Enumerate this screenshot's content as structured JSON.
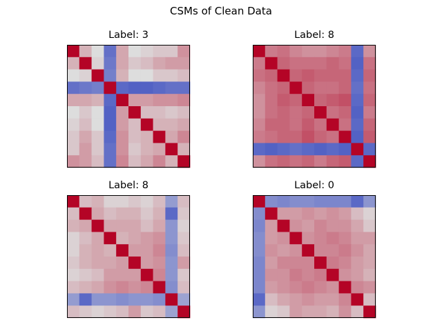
{
  "figure": {
    "title": "CSMs of Clean Data"
  },
  "chart_data": [
    {
      "type": "heatmap",
      "title": "Label: 3",
      "color_scale": {
        "low": "#3b4cc0",
        "mid": "#dddddd",
        "high": "#b40426",
        "vmin": -1,
        "vmax": 1
      },
      "matrix": [
        [
          1.0,
          0.2,
          0.0,
          -0.75,
          0.25,
          0.0,
          0.05,
          0.1,
          0.1,
          0.35
        ],
        [
          0.2,
          1.0,
          0.05,
          -0.7,
          0.25,
          0.1,
          0.15,
          0.25,
          0.3,
          0.3
        ],
        [
          0.0,
          0.05,
          1.0,
          -0.65,
          0.2,
          0.0,
          0.0,
          0.1,
          0.1,
          0.15
        ],
        [
          -0.75,
          -0.7,
          -0.65,
          1.0,
          -0.8,
          -0.85,
          -0.85,
          -0.8,
          -0.75,
          -0.75
        ],
        [
          0.25,
          0.25,
          0.2,
          -0.8,
          1.0,
          0.3,
          0.3,
          0.35,
          0.35,
          0.4
        ],
        [
          0.0,
          0.1,
          0.0,
          -0.85,
          0.3,
          1.0,
          0.15,
          0.15,
          0.1,
          0.15
        ],
        [
          0.05,
          0.15,
          0.0,
          -0.85,
          0.3,
          0.15,
          1.0,
          0.2,
          0.2,
          0.25
        ],
        [
          0.1,
          0.25,
          0.1,
          -0.8,
          0.35,
          0.15,
          0.2,
          1.0,
          0.25,
          0.4
        ],
        [
          0.1,
          0.3,
          0.1,
          -0.75,
          0.35,
          0.1,
          0.2,
          0.25,
          1.0,
          0.2
        ],
        [
          0.35,
          0.3,
          0.15,
          -0.75,
          0.4,
          0.15,
          0.25,
          0.4,
          0.2,
          1.0
        ]
      ]
    },
    {
      "type": "heatmap",
      "title": "Label: 8",
      "color_scale": {
        "low": "#3b4cc0",
        "mid": "#dddddd",
        "high": "#b40426",
        "vmin": -1,
        "vmax": 1
      },
      "matrix": [
        [
          1.0,
          0.45,
          0.5,
          0.4,
          0.35,
          0.35,
          0.4,
          0.45,
          -0.8,
          0.35
        ],
        [
          0.45,
          1.0,
          0.55,
          0.5,
          0.5,
          0.5,
          0.55,
          0.5,
          -0.85,
          0.5
        ],
        [
          0.5,
          0.55,
          1.0,
          0.55,
          0.6,
          0.55,
          0.55,
          0.55,
          -0.8,
          0.55
        ],
        [
          0.4,
          0.5,
          0.55,
          1.0,
          0.55,
          0.5,
          0.5,
          0.55,
          -0.75,
          0.5
        ],
        [
          0.35,
          0.5,
          0.6,
          0.55,
          1.0,
          0.55,
          0.6,
          0.65,
          -0.8,
          0.55
        ],
        [
          0.35,
          0.5,
          0.55,
          0.5,
          0.55,
          1.0,
          0.5,
          0.55,
          -0.85,
          0.45
        ],
        [
          0.4,
          0.55,
          0.55,
          0.5,
          0.6,
          0.5,
          1.0,
          0.5,
          -0.8,
          0.55
        ],
        [
          0.45,
          0.5,
          0.55,
          0.55,
          0.65,
          0.55,
          0.5,
          1.0,
          -0.85,
          0.6
        ],
        [
          -0.8,
          -0.85,
          -0.8,
          -0.75,
          -0.8,
          -0.85,
          -0.8,
          -0.85,
          1.0,
          -0.8
        ],
        [
          0.35,
          0.5,
          0.55,
          0.5,
          0.55,
          0.45,
          0.55,
          0.6,
          -0.8,
          1.0
        ]
      ]
    },
    {
      "type": "heatmap",
      "title": "Label: 8",
      "color_scale": {
        "low": "#3b4cc0",
        "mid": "#dddddd",
        "high": "#b40426",
        "vmin": -1,
        "vmax": 1
      },
      "matrix": [
        [
          1.0,
          0.15,
          0.2,
          0.05,
          0.05,
          0.1,
          0.05,
          0.15,
          -0.45,
          0.15
        ],
        [
          0.15,
          1.0,
          0.25,
          0.15,
          0.2,
          0.2,
          0.1,
          0.2,
          -0.8,
          0.1
        ],
        [
          0.2,
          0.25,
          1.0,
          0.25,
          0.25,
          0.25,
          0.15,
          0.25,
          -0.5,
          0.05
        ],
        [
          0.05,
          0.15,
          0.25,
          1.0,
          0.2,
          0.25,
          0.3,
          0.35,
          -0.5,
          0.1
        ],
        [
          0.05,
          0.2,
          0.25,
          0.2,
          1.0,
          0.3,
          0.3,
          0.4,
          -0.55,
          0.15
        ],
        [
          0.1,
          0.2,
          0.25,
          0.25,
          0.3,
          1.0,
          0.3,
          0.35,
          -0.5,
          0.3
        ],
        [
          0.05,
          0.1,
          0.15,
          0.3,
          0.3,
          0.3,
          1.0,
          0.4,
          -0.5,
          0.1
        ],
        [
          0.15,
          0.2,
          0.25,
          0.35,
          0.4,
          0.35,
          0.4,
          1.0,
          -0.55,
          0.15
        ],
        [
          -0.45,
          -0.8,
          -0.5,
          -0.5,
          -0.55,
          -0.5,
          -0.5,
          -0.55,
          1.0,
          -0.4
        ],
        [
          0.15,
          0.1,
          0.05,
          0.1,
          0.15,
          0.3,
          0.1,
          0.15,
          -0.4,
          1.0
        ]
      ]
    },
    {
      "type": "heatmap",
      "title": "Label: 0",
      "color_scale": {
        "low": "#3b4cc0",
        "mid": "#dddddd",
        "high": "#b40426",
        "vmin": -1,
        "vmax": 1
      },
      "matrix": [
        [
          1.0,
          -0.55,
          -0.6,
          -0.55,
          -0.55,
          -0.6,
          -0.6,
          -0.6,
          -0.8,
          -0.5
        ],
        [
          -0.55,
          1.0,
          0.3,
          0.3,
          0.35,
          0.3,
          0.35,
          0.3,
          0.15,
          0.05
        ],
        [
          -0.6,
          0.3,
          1.0,
          0.35,
          0.3,
          0.4,
          0.35,
          0.35,
          0.25,
          0.1
        ],
        [
          -0.55,
          0.3,
          0.35,
          1.0,
          0.35,
          0.4,
          0.45,
          0.4,
          0.3,
          0.3
        ],
        [
          -0.55,
          0.35,
          0.3,
          0.35,
          1.0,
          0.4,
          0.4,
          0.45,
          0.35,
          0.25
        ],
        [
          -0.6,
          0.3,
          0.4,
          0.4,
          0.4,
          1.0,
          0.45,
          0.4,
          0.3,
          0.25
        ],
        [
          -0.6,
          0.35,
          0.35,
          0.45,
          0.4,
          0.45,
          1.0,
          0.35,
          0.3,
          0.2
        ],
        [
          -0.6,
          0.3,
          0.35,
          0.4,
          0.45,
          0.4,
          0.35,
          1.0,
          0.4,
          0.35
        ],
        [
          -0.8,
          0.15,
          0.25,
          0.3,
          0.35,
          0.3,
          0.3,
          0.4,
          1.0,
          0.15
        ],
        [
          -0.5,
          0.05,
          0.1,
          0.3,
          0.25,
          0.25,
          0.2,
          0.35,
          0.15,
          1.0
        ]
      ]
    }
  ]
}
